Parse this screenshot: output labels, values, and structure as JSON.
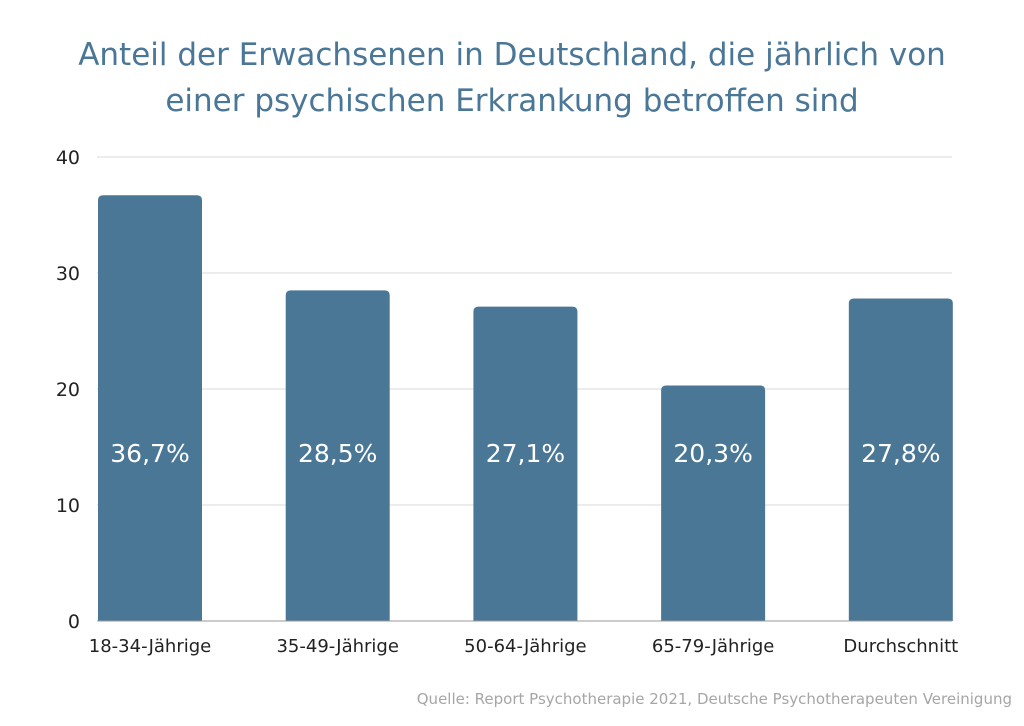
{
  "chart_data": {
    "type": "bar",
    "title_lines": [
      "Anteil der Erwachsenen in Deutschland, die jährlich von",
      "einer psychischen Erkrankung betroffen sind"
    ],
    "categories": [
      "18-34-Jährige",
      "35-49-Jährige",
      "50-64-Jährige",
      "65-79-Jährige",
      "Durchschnitt"
    ],
    "values": [
      36.7,
      28.5,
      27.1,
      20.3,
      27.8
    ],
    "data_labels": [
      "36,7%",
      "28,5%",
      "27,1%",
      "20,3%",
      "27,8%"
    ],
    "xlabel": "",
    "ylabel": "",
    "ylim": [
      0,
      40
    ],
    "yticks": [
      0,
      10,
      20,
      30,
      40
    ],
    "grid": true,
    "bar_color": "#4b7796",
    "title_color": "#4a7797",
    "source": "Quelle: Report Psychotherapie 2021, Deutsche Psychotherapeuten Vereinigung"
  }
}
